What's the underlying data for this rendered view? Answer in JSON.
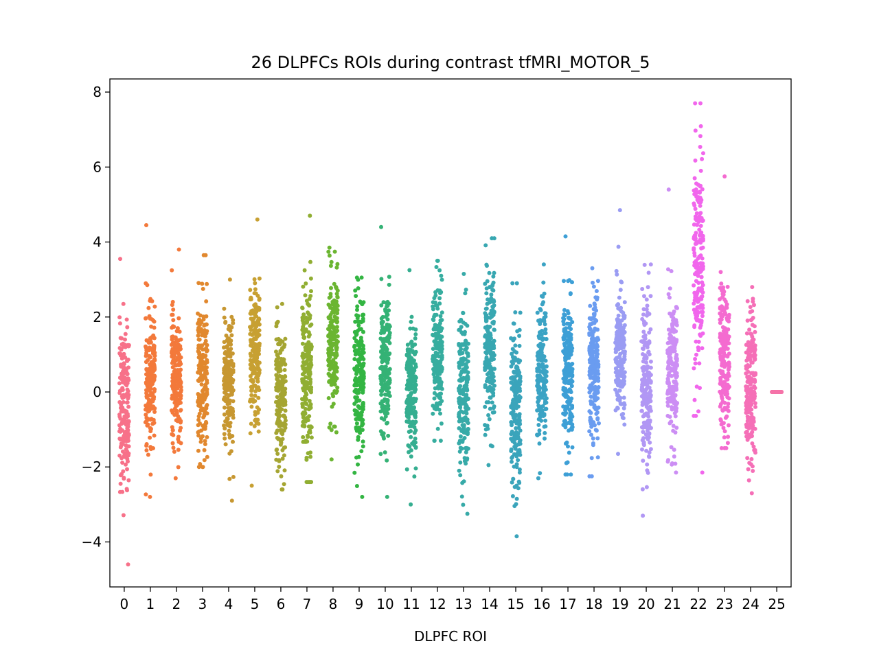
{
  "chart_data": {
    "type": "scatter",
    "subtype": "strip",
    "title": "26 DLPFCs ROIs during contrast tfMRI_MOTOR_5",
    "xlabel": "DLPFC ROI",
    "ylabel": "",
    "categories": [
      "0",
      "1",
      "2",
      "3",
      "4",
      "5",
      "6",
      "7",
      "8",
      "9",
      "10",
      "11",
      "12",
      "13",
      "14",
      "15",
      "16",
      "17",
      "18",
      "19",
      "20",
      "21",
      "22",
      "23",
      "24",
      "25"
    ],
    "yticks": [
      -4,
      -2,
      0,
      2,
      4,
      6,
      8
    ],
    "ytick_labels": [
      "−4",
      "−2",
      "0",
      "2",
      "4",
      "6",
      "8"
    ],
    "ylim": [
      -5.2,
      8.35
    ],
    "grid": false,
    "legend": "none",
    "points_per_category": 200,
    "series": [
      {
        "name": "0",
        "color": "#f77189",
        "center": -0.4,
        "spread": 1.1,
        "min": -4.6,
        "max": 3.55
      },
      {
        "name": "1",
        "color": "#f3793b",
        "center": 0.4,
        "spread": 0.9,
        "min": -2.8,
        "max": 4.45
      },
      {
        "name": "2",
        "color": "#f3793b",
        "center": 0.3,
        "spread": 0.9,
        "min": -2.3,
        "max": 3.8
      },
      {
        "name": "3",
        "color": "#e1882e",
        "center": 0.5,
        "spread": 1.0,
        "min": -2.0,
        "max": 3.65
      },
      {
        "name": "4",
        "color": "#c79731",
        "center": 0.3,
        "spread": 0.9,
        "min": -2.9,
        "max": 3.0
      },
      {
        "name": "5",
        "color": "#c7a032",
        "center": 0.9,
        "spread": 0.9,
        "min": -2.5,
        "max": 4.6
      },
      {
        "name": "6",
        "color": "#a5a532",
        "center": -0.1,
        "spread": 0.9,
        "min": -2.6,
        "max": 2.35
      },
      {
        "name": "7",
        "color": "#90ae32",
        "center": 0.6,
        "spread": 1.1,
        "min": -2.4,
        "max": 4.7
      },
      {
        "name": "8",
        "color": "#6bb531",
        "center": 1.3,
        "spread": 0.9,
        "min": -1.8,
        "max": 3.85
      },
      {
        "name": "9",
        "color": "#33b542",
        "center": 0.5,
        "spread": 1.0,
        "min": -2.8,
        "max": 3.05
      },
      {
        "name": "10",
        "color": "#34b275",
        "center": 0.5,
        "spread": 0.9,
        "min": -2.8,
        "max": 4.4
      },
      {
        "name": "11",
        "color": "#35ae90",
        "center": 0.1,
        "spread": 0.9,
        "min": -3.0,
        "max": 3.25
      },
      {
        "name": "12",
        "color": "#36ad9f",
        "center": 1.1,
        "spread": 0.9,
        "min": -1.3,
        "max": 3.5
      },
      {
        "name": "13",
        "color": "#37aaa8",
        "center": 0.0,
        "spread": 1.0,
        "min": -3.25,
        "max": 3.15
      },
      {
        "name": "14",
        "color": "#38a7b1",
        "center": 1.1,
        "spread": 1.0,
        "min": -1.95,
        "max": 4.1
      },
      {
        "name": "15",
        "color": "#3aa4bb",
        "center": -0.5,
        "spread": 1.1,
        "min": -3.85,
        "max": 2.9
      },
      {
        "name": "16",
        "color": "#3ba3c4",
        "center": 0.6,
        "spread": 0.9,
        "min": -2.3,
        "max": 3.4
      },
      {
        "name": "17",
        "color": "#3d9fd6",
        "center": 0.5,
        "spread": 1.0,
        "min": -2.2,
        "max": 4.15
      },
      {
        "name": "18",
        "color": "#6a9cf0",
        "center": 0.6,
        "spread": 1.0,
        "min": -2.25,
        "max": 3.3
      },
      {
        "name": "19",
        "color": "#9a9cf3",
        "center": 0.9,
        "spread": 0.9,
        "min": -1.65,
        "max": 4.85
      },
      {
        "name": "20",
        "color": "#b197f4",
        "center": 0.2,
        "spread": 1.0,
        "min": -3.3,
        "max": 3.4
      },
      {
        "name": "21",
        "color": "#cc8ef4",
        "center": 0.5,
        "spread": 1.0,
        "min": -2.15,
        "max": 5.4
      },
      {
        "name": "22",
        "color": "#f166ec",
        "center": 3.5,
        "spread": 1.5,
        "min": -2.15,
        "max": 7.7
      },
      {
        "name": "23",
        "color": "#f46bd0",
        "center": 0.9,
        "spread": 1.0,
        "min": -1.5,
        "max": 5.75
      },
      {
        "name": "24",
        "color": "#f56fb7",
        "center": 0.2,
        "spread": 1.0,
        "min": -2.7,
        "max": 2.8
      },
      {
        "name": "25",
        "color": "#f572a8",
        "center": 0.0,
        "spread": 0.0,
        "min": 0.0,
        "max": 0.0
      }
    ]
  }
}
